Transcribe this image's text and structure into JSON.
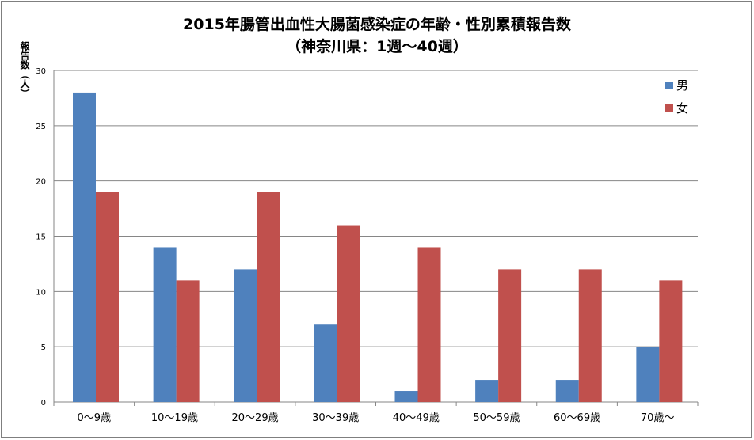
{
  "chart_data": {
    "type": "bar",
    "title": "2015年腸管出血性大腸菌感染症の年齢・性別累積報告数",
    "subtitle": "（神奈川県：1週～40週）",
    "ylabel": "報告数（人）",
    "xlabel": "",
    "ylim": [
      0,
      30
    ],
    "yticks": [
      0,
      5,
      10,
      15,
      20,
      25,
      30
    ],
    "grid": true,
    "legend_position": "top-right",
    "categories": [
      "0～9歳",
      "10～19歳",
      "20～29歳",
      "30～39歳",
      "40～49歳",
      "50～59歳",
      "60～69歳",
      "70歳～"
    ],
    "series": [
      {
        "name": "男",
        "color": "#4f81bd",
        "values": [
          28,
          14,
          12,
          7,
          1,
          2,
          2,
          5
        ]
      },
      {
        "name": "女",
        "color": "#c0504d",
        "values": [
          19,
          11,
          19,
          16,
          14,
          12,
          12,
          11
        ]
      }
    ]
  }
}
